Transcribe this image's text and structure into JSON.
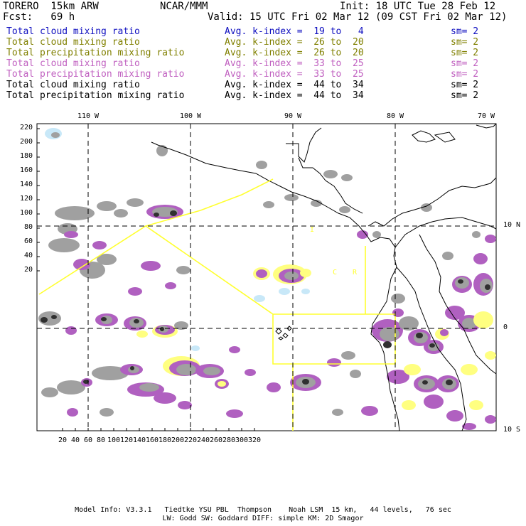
{
  "header": {
    "model": "TORERO  15km ARW",
    "center": "NCAR/MMM",
    "init": "Init: 18 UTC Tue 28 Feb 12",
    "fcst": "Fcst:   69 h",
    "valid": "Valid: 15 UTC Fri 02 Mar 12 (09 CST Fri 02 Mar 12)"
  },
  "legend": [
    {
      "field": "Total cloud mixing ratio",
      "kindex": "Avg. k-index =  19 to   4",
      "sm": "sm= 2",
      "color": "#1010c0"
    },
    {
      "field": "Total cloud mixing ratio",
      "kindex": "Avg. k-index =  26 to  20",
      "sm": "sm= 2",
      "color": "#808000"
    },
    {
      "field": "Total precipitation mixing ratio",
      "kindex": "Avg. k-index =  26 to  20",
      "sm": "sm= 2",
      "color": "#808000"
    },
    {
      "field": "Total cloud mixing ratio",
      "kindex": "Avg. k-index =  33 to  25",
      "sm": "sm= 2",
      "color": "#c060c0"
    },
    {
      "field": "Total precipitation mixing ratio",
      "kindex": "Avg. k-index =  33 to  25",
      "sm": "sm= 2",
      "color": "#c060c0"
    },
    {
      "field": "Total cloud mixing ratio",
      "kindex": "Avg. k-index =  44 to  34",
      "sm": "sm= 2",
      "color": "#000000"
    },
    {
      "field": "Total precipitation mixing ratio",
      "kindex": "Avg. k-index =  44 to  34",
      "sm": "sm= 2",
      "color": "#000000"
    }
  ],
  "map": {
    "top_lon_labels": [
      "110 W",
      "100 W",
      "90 W",
      "80 W",
      "70 W"
    ],
    "right_lat_labels": [
      "10 N",
      "0",
      "10 S"
    ],
    "y_ticks": [
      "220",
      "200",
      "180",
      "160",
      "140",
      "120",
      "100",
      "80",
      "60",
      "40",
      "20"
    ],
    "x_ticks": [
      "20",
      "40",
      "60",
      "80",
      "100",
      "120",
      "140",
      "160",
      "180",
      "200",
      "220",
      "240",
      "260",
      "280",
      "300",
      "320"
    ],
    "region_labels": [
      "I",
      "C",
      "R"
    ],
    "colors": {
      "cloud_gray": "#a0a0a0",
      "cloud_dark": "#303030",
      "precip_purple": "#b060c0",
      "precip_yellow": "#ffff80",
      "light_blue": "#c8e8f8",
      "boundary": "#ffff30"
    }
  },
  "footer": {
    "line1": "Model Info: V3.3.1   Tiedtke YSU PBL  Thompson    Noah LSM  15 km,   44 levels,   76 sec",
    "line2": "LW: Godd SW: Goddard DIFF: simple KM: 2D Smagor"
  }
}
